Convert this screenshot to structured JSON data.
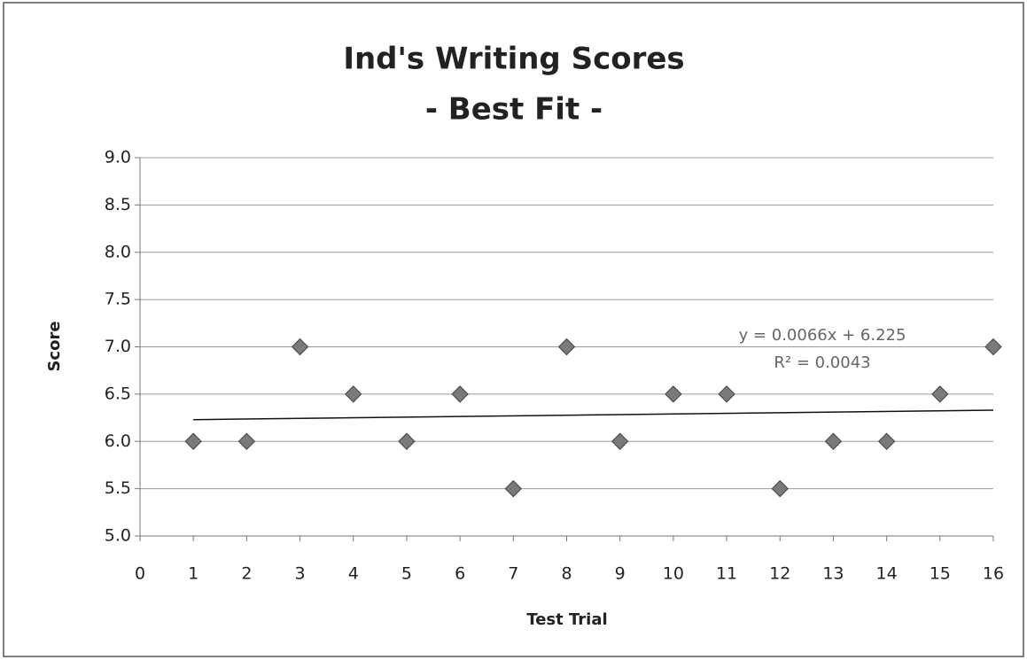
{
  "chart_data": {
    "type": "scatter",
    "title": [
      "Ind's Writing Scores",
      "- Best Fit -"
    ],
    "xlabel": "Test Trial",
    "ylabel": "Score",
    "x": [
      1,
      2,
      3,
      4,
      5,
      6,
      7,
      8,
      9,
      10,
      11,
      12,
      13,
      14,
      15,
      16
    ],
    "series": [
      {
        "name": "Score",
        "color": "#7a7a7a",
        "values": [
          6,
          6,
          7,
          6.5,
          6,
          6.5,
          5.5,
          7,
          6,
          6.5,
          6.5,
          5.5,
          6,
          6,
          6.5,
          7
        ]
      }
    ],
    "trendline": {
      "x": [
        1,
        16
      ],
      "values": [
        6.23,
        6.33
      ],
      "color": "#111"
    },
    "annotations": [
      "y = 0.0066x + 6.225",
      "R² = 0.0043"
    ],
    "xlim": [
      0,
      16
    ],
    "xticks": [
      0,
      1,
      2,
      3,
      4,
      5,
      6,
      7,
      8,
      9,
      10,
      11,
      12,
      13,
      14,
      15,
      16
    ],
    "ylim": [
      5,
      9
    ],
    "yticks": [
      {
        "value": 5,
        "label": "5.0"
      },
      {
        "value": 5.5,
        "label": "5.5"
      },
      {
        "value": 6,
        "label": "6.0"
      },
      {
        "value": 6.5,
        "label": "6.5"
      },
      {
        "value": 7,
        "label": "7.0"
      },
      {
        "value": 7.5,
        "label": "7.5"
      },
      {
        "value": 8,
        "label": "8.0"
      },
      {
        "value": 8.5,
        "label": "8.5"
      },
      {
        "value": 9,
        "label": "9.0"
      }
    ],
    "grid": true
  }
}
